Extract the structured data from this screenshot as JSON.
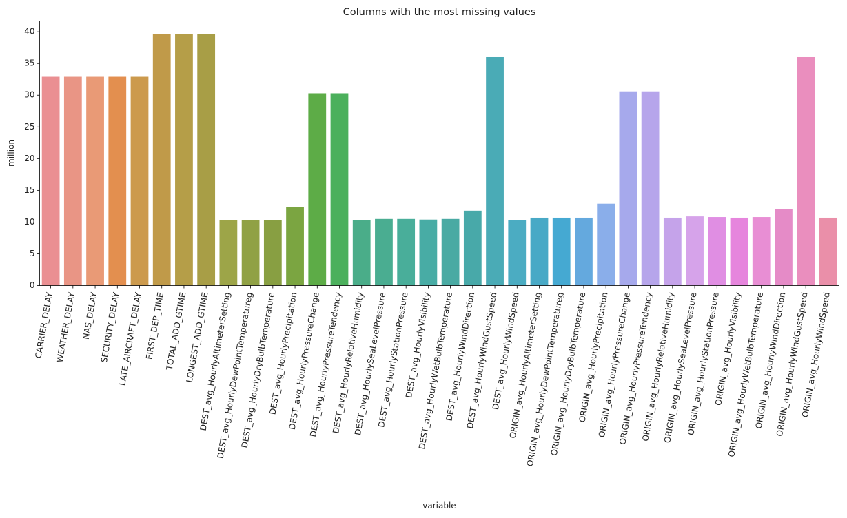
{
  "chart_data": {
    "type": "bar",
    "title": "Columns with the most missing values",
    "xlabel": "variable",
    "ylabel": "million",
    "ylim": [
      0,
      41.7
    ],
    "yticks": [
      0,
      5,
      10,
      15,
      20,
      25,
      30,
      35,
      40
    ],
    "grid": false,
    "categories": [
      "CARRIER_DELAY",
      "WEATHER_DELAY",
      "NAS_DELAY",
      "SECURITY_DELAY",
      "LATE_AIRCRAFT_DELAY",
      "FIRST_DEP_TIME",
      "TOTAL_ADD_GTIME",
      "LONGEST_ADD_GTIME",
      "DEST_avg_HourlyAltimeterSetting",
      "DEST_avg_HourlyDewPointTemperatureg",
      "DEST_avg_HourlyDryBulbTemperature",
      "DEST_avg_HourlyPrecipitation",
      "DEST_avg_HourlyPressureChange",
      "DEST_avg_HourlyPressureTendency",
      "DEST_avg_HourlyRelativeHumidity",
      "DEST_avg_HourlySeaLevelPressure",
      "DEST_avg_HourlyStationPressure",
      "DEST_avg_HourlyVisibility",
      "DEST_avg_HourlyWetBulbTemperature",
      "DEST_avg_HourlyWindDirection",
      "DEST_avg_HourlyWindGustSpeed",
      "DEST_avg_HourlyWindSpeed",
      "ORIGIN_avg_HourlyAltimeterSetting",
      "ORIGIN_avg_HourlyDewPointTemperatureg",
      "ORIGIN_avg_HourlyDryBulbTemperature",
      "ORIGIN_avg_HourlyPrecipitation",
      "ORIGIN_avg_HourlyPressureChange",
      "ORIGIN_avg_HourlyPressureTendency",
      "ORIGIN_avg_HourlyRelativeHumidity",
      "ORIGIN_avg_HourlySeaLevelPressure",
      "ORIGIN_avg_HourlyStationPressure",
      "ORIGIN_avg_HourlyVisibility",
      "ORIGIN_avg_HourlyWetBulbTemperature",
      "ORIGIN_avg_HourlyWindDirection",
      "ORIGIN_avg_HourlyWindGustSpeed",
      "ORIGIN_avg_HourlyWindSpeed"
    ],
    "values": [
      32.9,
      32.9,
      32.9,
      32.9,
      32.9,
      39.6,
      39.6,
      39.6,
      10.3,
      10.3,
      10.3,
      12.4,
      30.3,
      30.3,
      10.3,
      10.5,
      10.5,
      10.4,
      10.5,
      11.8,
      36.0,
      10.3,
      10.7,
      10.7,
      10.7,
      12.9,
      30.6,
      30.6,
      10.7,
      10.9,
      10.8,
      10.7,
      10.8,
      12.1,
      36.0,
      10.7
    ],
    "colors": [
      "#ea8f92",
      "#e99585",
      "#e99a76",
      "#e38f4f",
      "#cc9a4d",
      "#c09a49",
      "#b59e48",
      "#a89e46",
      "#9da548",
      "#90a144",
      "#889f42",
      "#7ba541",
      "#5dac47",
      "#4bb05c",
      "#4aad89",
      "#4aad91",
      "#49ae9a",
      "#48aca5",
      "#49aaa3",
      "#48a9a9",
      "#4aabb6",
      "#4bacc2",
      "#48a9c6",
      "#45a9d2",
      "#64a9de",
      "#8aaeea",
      "#a6a9ec",
      "#b6a5eb",
      "#c5a3ea",
      "#d6a3ea",
      "#e08ee3",
      "#e685dd",
      "#e88ed4",
      "#e58bc7",
      "#ea8ebe",
      "#ea8fa9"
    ]
  }
}
